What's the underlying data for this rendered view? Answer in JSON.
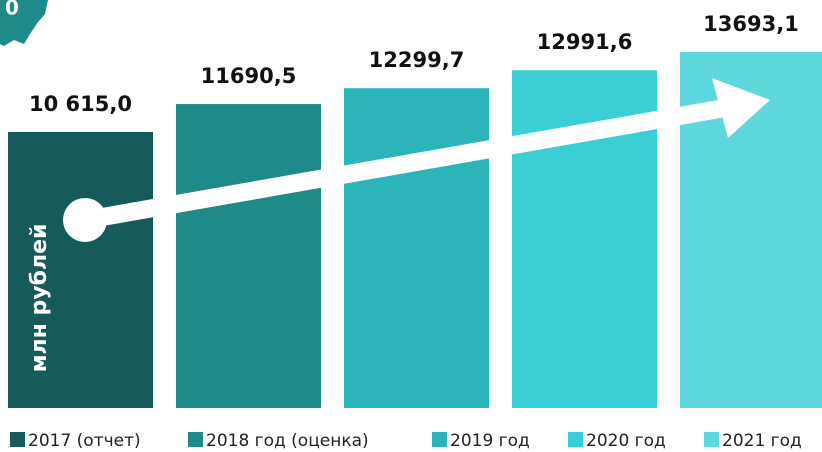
{
  "chart_data": {
    "type": "bar",
    "annotation": "0",
    "y_label": "млн рублей",
    "categories": [
      "2017 (отчет)",
      "2018 год (оценка)",
      "2019 год",
      "2020 год",
      "2021 год"
    ],
    "values": [
      10615.0,
      11690.5,
      12299.7,
      12991.6,
      13693.1
    ],
    "value_labels": [
      "10 615,0",
      "11690,5",
      "12299,7",
      "12991,6",
      "13693,1"
    ],
    "colors": [
      "#175a5a",
      "#1e8a8a",
      "#2bb5b8",
      "#3acfd4",
      "#5ed8dc"
    ],
    "ylim": [
      0,
      15000
    ]
  }
}
